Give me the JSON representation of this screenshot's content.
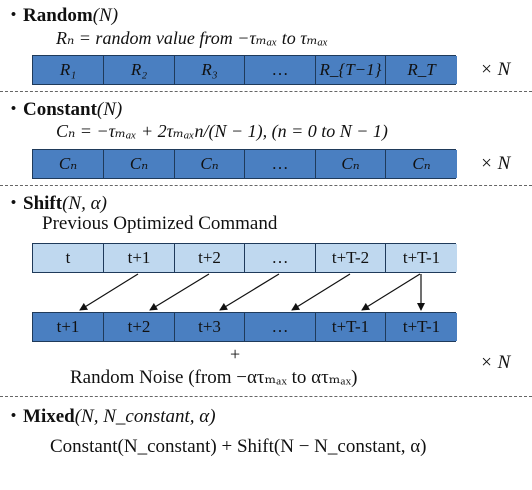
{
  "random": {
    "bullet": "・",
    "title": "Random",
    "args": "(N)",
    "formula": "Rₙ = random value from −τₘₐₓ to τₘₐₓ",
    "cells": [
      "R₁",
      "R₂",
      "R₃",
      "…",
      "R_{T−1}",
      "R_T"
    ],
    "times": "× N"
  },
  "constant": {
    "bullet": "・",
    "title": "Constant",
    "args": "(N)",
    "formula": "Cₙ = −τₘₐₓ + 2τₘₐₓn/(N − 1), (n = 0 to N − 1)",
    "cells": [
      "Cₙ",
      "Cₙ",
      "Cₙ",
      "…",
      "Cₙ",
      "Cₙ"
    ],
    "times": "× N"
  },
  "shift": {
    "bullet": "・",
    "title": "Shift",
    "args": "(N, α)",
    "prev_label": "Previous Optimized Command",
    "top_cells": [
      "t",
      "t+1",
      "t+2",
      "…",
      "t+T-2",
      "t+T-1"
    ],
    "bottom_cells": [
      "t+1",
      "t+2",
      "t+3",
      "…",
      "t+T-1",
      "t+T-1"
    ],
    "plus": "+",
    "noise": "Random Noise (from −ατₘₐₓ to ατₘₐₓ)",
    "times": "× N"
  },
  "mixed": {
    "bullet": "・",
    "title": "Mixed",
    "args": "(N, N_constant, α)",
    "formula": "Constant(N_constant) + Shift(N − N_constant, α)"
  },
  "colors": {
    "dark_cell": "#4a7fc1",
    "light_cell": "#bfd8ef"
  }
}
